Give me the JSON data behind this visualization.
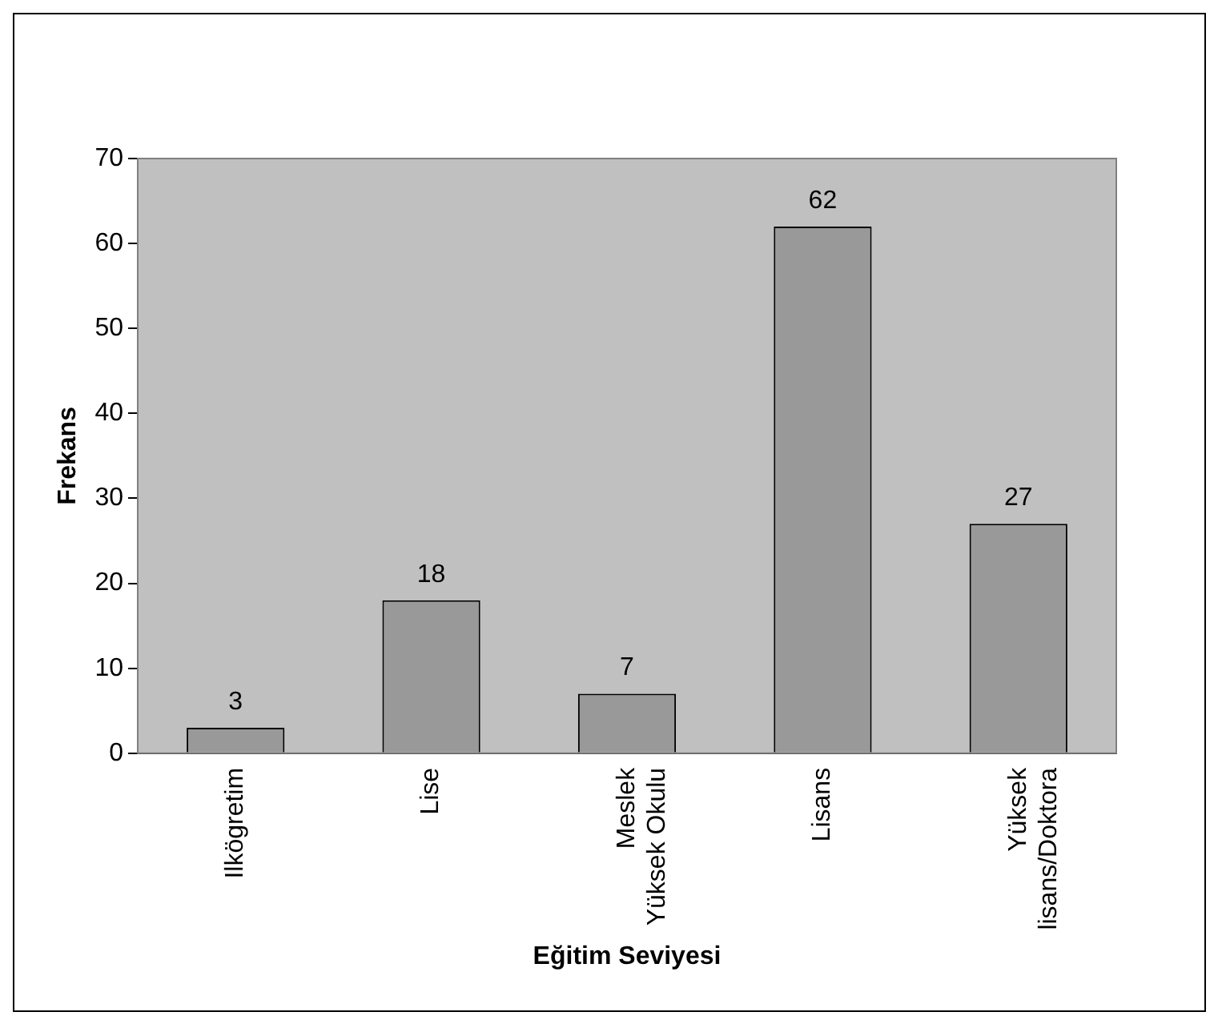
{
  "chart_data": {
    "type": "bar",
    "xlabel": "Eğitim Seviyesi",
    "ylabel": "Frekans",
    "categories": [
      "Ilkögretim",
      "Lise",
      "Meslek\nYüksek Okulu",
      "Lisans",
      "Yüksek\nlisans/Doktora"
    ],
    "values": [
      3,
      18,
      7,
      62,
      27
    ],
    "color": "#999999",
    "ylim": [
      0,
      70
    ],
    "yticks": [
      0,
      10,
      20,
      30,
      40,
      50,
      60,
      70
    ],
    "grid": false,
    "legend": false,
    "data_labels": true
  }
}
